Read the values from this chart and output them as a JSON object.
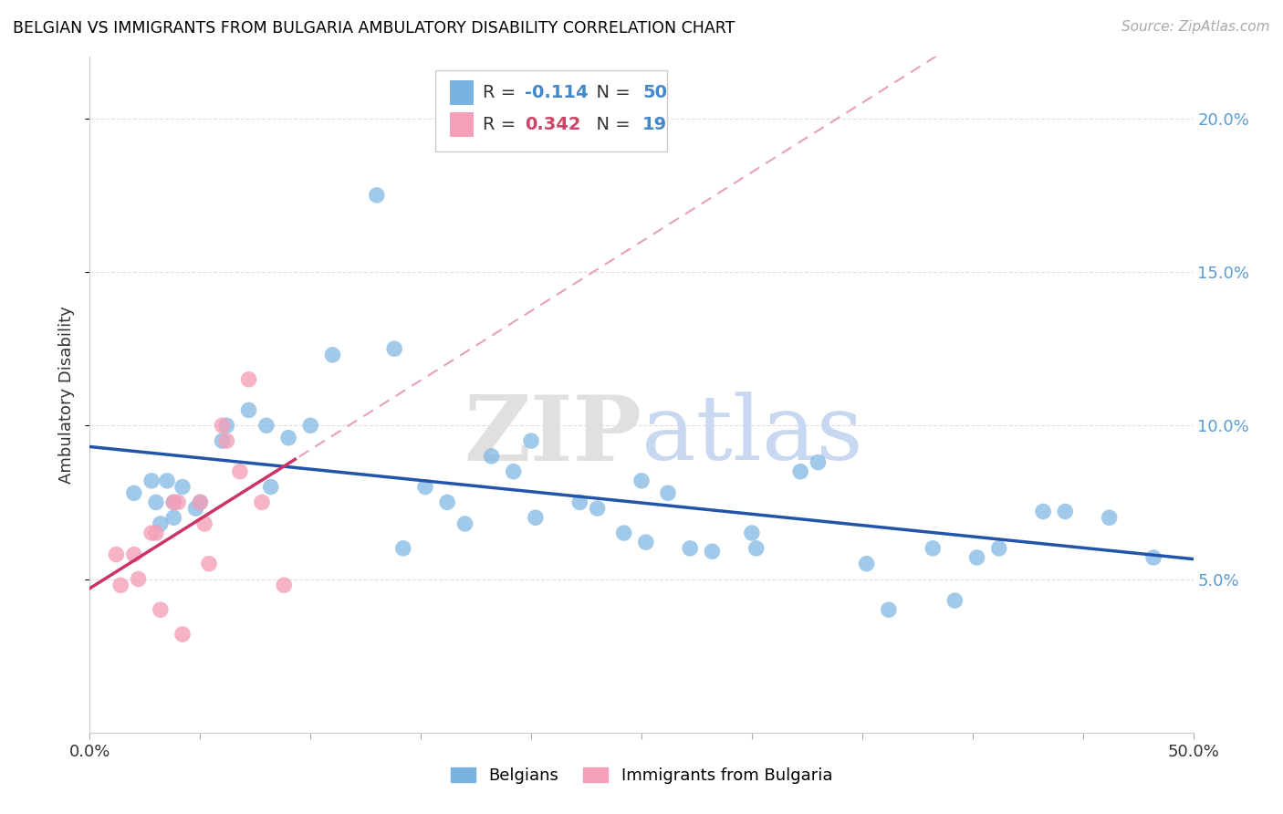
{
  "title": "BELGIAN VS IMMIGRANTS FROM BULGARIA AMBULATORY DISABILITY CORRELATION CHART",
  "source": "Source: ZipAtlas.com",
  "ylabel": "Ambulatory Disability",
  "xlim": [
    0.0,
    0.5
  ],
  "ylim": [
    0.0,
    0.22
  ],
  "xticks": [
    0.0,
    0.05,
    0.1,
    0.15,
    0.2,
    0.25,
    0.3,
    0.35,
    0.4,
    0.45,
    0.5
  ],
  "xtick_labels": [
    "0.0%",
    "",
    "",
    "",
    "",
    "",
    "",
    "",
    "",
    "",
    "50.0%"
  ],
  "yticks": [
    0.05,
    0.1,
    0.15,
    0.2
  ],
  "ytick_labels": [
    "5.0%",
    "10.0%",
    "15.0%",
    "20.0%"
  ],
  "belgians_x": [
    0.028,
    0.035,
    0.02,
    0.03,
    0.038,
    0.042,
    0.048,
    0.038,
    0.032,
    0.05,
    0.06,
    0.062,
    0.072,
    0.08,
    0.082,
    0.09,
    0.1,
    0.11,
    0.13,
    0.138,
    0.142,
    0.152,
    0.162,
    0.17,
    0.182,
    0.192,
    0.2,
    0.202,
    0.222,
    0.23,
    0.242,
    0.25,
    0.252,
    0.262,
    0.272,
    0.282,
    0.3,
    0.302,
    0.322,
    0.33,
    0.352,
    0.362,
    0.382,
    0.392,
    0.402,
    0.412,
    0.432,
    0.442,
    0.462,
    0.482
  ],
  "belgians_y": [
    0.082,
    0.082,
    0.078,
    0.075,
    0.075,
    0.08,
    0.073,
    0.07,
    0.068,
    0.075,
    0.095,
    0.1,
    0.105,
    0.1,
    0.08,
    0.096,
    0.1,
    0.123,
    0.175,
    0.125,
    0.06,
    0.08,
    0.075,
    0.068,
    0.09,
    0.085,
    0.095,
    0.07,
    0.075,
    0.073,
    0.065,
    0.082,
    0.062,
    0.078,
    0.06,
    0.059,
    0.065,
    0.06,
    0.085,
    0.088,
    0.055,
    0.04,
    0.06,
    0.043,
    0.057,
    0.06,
    0.072,
    0.072,
    0.07,
    0.057
  ],
  "bulgaria_x": [
    0.012,
    0.014,
    0.02,
    0.022,
    0.028,
    0.03,
    0.032,
    0.038,
    0.04,
    0.042,
    0.05,
    0.052,
    0.054,
    0.06,
    0.062,
    0.068,
    0.072,
    0.078,
    0.088
  ],
  "bulgaria_y": [
    0.058,
    0.048,
    0.058,
    0.05,
    0.065,
    0.065,
    0.04,
    0.075,
    0.075,
    0.032,
    0.075,
    0.068,
    0.055,
    0.1,
    0.095,
    0.085,
    0.115,
    0.075,
    0.048
  ],
  "blue_color": "#7ab3e0",
  "pink_color": "#f4a0b8",
  "trendline_blue_color": "#2255aa",
  "trendline_pink_solid_color": "#cc3366",
  "trendline_pink_dash_color": "#e8a0b8",
  "watermark_zip": "ZIP",
  "watermark_atlas": "atlas",
  "background_color": "#ffffff",
  "grid_color": "#dddddd",
  "legend_r1_val": "-0.114",
  "legend_r1_n": "50",
  "legend_r2_val": "0.342",
  "legend_r2_n": "19"
}
